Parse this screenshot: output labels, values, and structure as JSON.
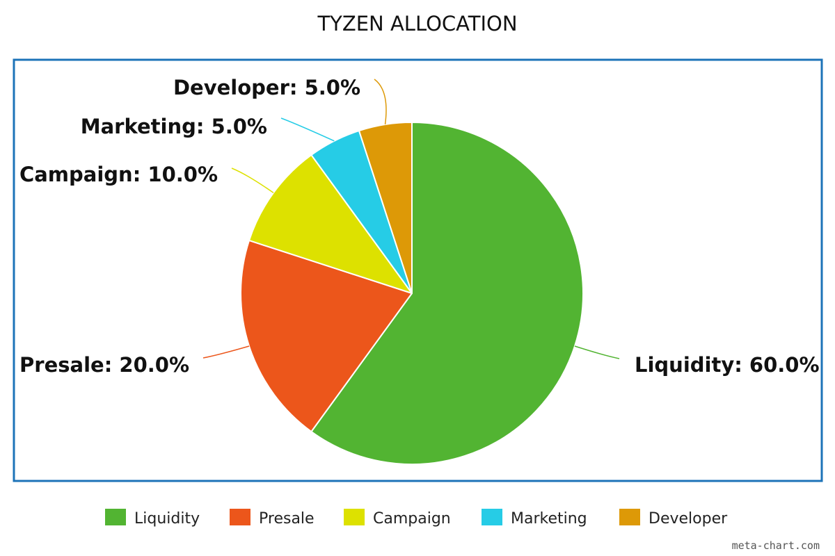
{
  "chart_data": {
    "type": "pie",
    "title": "TYZEN ALLOCATION",
    "categories": [
      "Liquidity",
      "Presale",
      "Campaign",
      "Marketing",
      "Developer"
    ],
    "values": [
      60.0,
      20.0,
      10.0,
      5.0,
      5.0
    ],
    "labels": [
      "Liquidity: 60.0%",
      "Presale: 20.0%",
      "Campaign: 10.0%",
      "Marketing: 5.0%",
      "Developer: 5.0%"
    ],
    "colors": [
      "#52b432",
      "#ec561b",
      "#dde100",
      "#26cce6",
      "#dd9907"
    ],
    "legend": "bottom",
    "border_color": "#1d73b8",
    "watermark": "meta-chart.com"
  }
}
